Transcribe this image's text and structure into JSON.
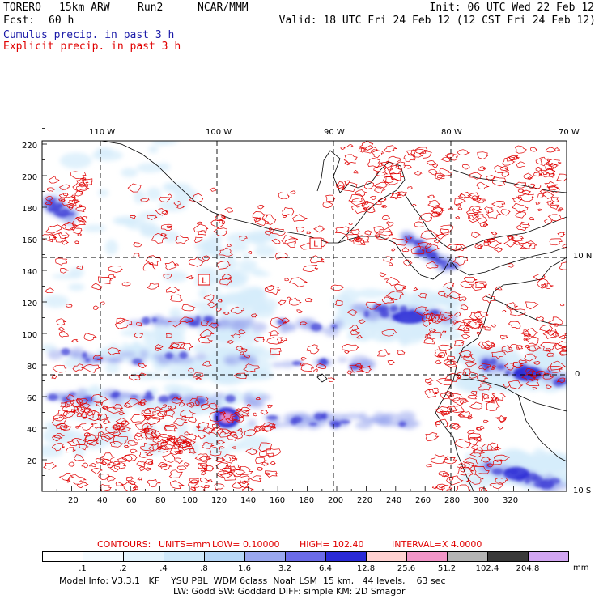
{
  "header": {
    "model": "TORERO",
    "resolution": "15km ARW",
    "run": "Run2",
    "org": "NCAR/MMM",
    "init": "Init: 06 UTC Wed 22 Feb 12",
    "fcst_label": "Fcst:",
    "fcst_value": "60 h",
    "valid": "Valid: 18 UTC Fri 24 Feb 12 (12 CST Fri 24 Feb 12)"
  },
  "fields": {
    "cumulus": "Cumulus precip. in past 3 h",
    "explicit": "Explicit precip. in past 3 h"
  },
  "axes": {
    "top_lon": [
      "110 W",
      "100 W",
      "90 W",
      "80 W",
      "70 W"
    ],
    "left_y": [
      "220",
      "200",
      "180",
      "160",
      "140",
      "120",
      "100",
      "80",
      "60",
      "40",
      "20"
    ],
    "bottom_x": [
      "20",
      "40",
      "60",
      "80",
      "100",
      "120",
      "140",
      "160",
      "180",
      "200",
      "220",
      "240",
      "260",
      "280",
      "300",
      "320"
    ],
    "right_lat": [
      "10 N",
      "0",
      "10 S"
    ]
  },
  "lows": [
    "L",
    "L"
  ],
  "contours_info": {
    "prefix": "CONTOURS:",
    "units": "UNITS=mm",
    "low": "LOW= 0.10000",
    "high": "HIGH= 102.40",
    "interval": "INTERVAL=X 4.0000"
  },
  "colorbar": {
    "labels": [
      ".1",
      ".2",
      ".4",
      ".8",
      "1.6",
      "3.2",
      "6.4",
      "12.8",
      "25.6",
      "51.2",
      "102.4",
      "204.8"
    ],
    "unit": "mm",
    "colors": [
      "#ffffff",
      "#f4fbff",
      "#e4f4fd",
      "#cfe9fa",
      "#b7d7f7",
      "#9aa7ef",
      "#6b6be8",
      "#2a2ad6",
      "#ffd2d2",
      "#f296c8",
      "#b4b4b4",
      "#3a3a3a",
      "#d2a6f2"
    ]
  },
  "footer": {
    "line1": "Model Info: V3.3.1   KF    YSU PBL  WDM 6class  Noah LSM  15 km,   44 levels,    63 sec",
    "line2": "LW: Godd SW: Goddard DIFF: simple KM: 2D Smagor"
  }
}
